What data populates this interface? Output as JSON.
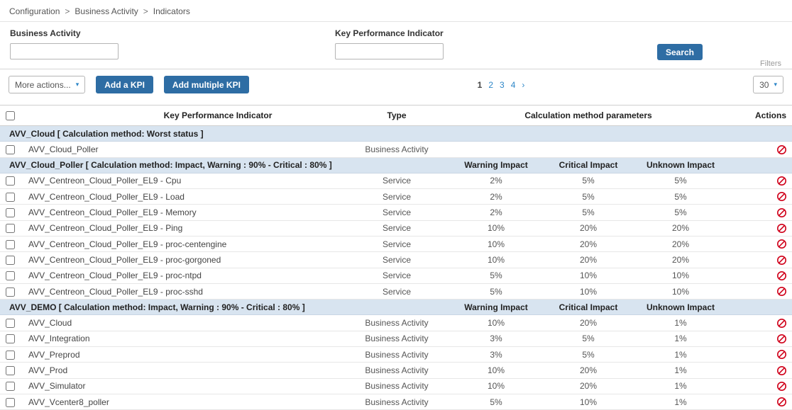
{
  "breadcrumb": {
    "separator": ">",
    "items": [
      "Configuration",
      "Business Activity",
      "Indicators"
    ]
  },
  "filters": {
    "business_activity": {
      "label": "Business Activity",
      "value": ""
    },
    "kpi": {
      "label": "Key Performance Indicator",
      "value": ""
    },
    "search_button": "Search",
    "filters_caption": "Filters"
  },
  "toolbar": {
    "more_actions": "More actions...",
    "add_kpi": "Add a KPI",
    "add_multiple_kpi": "Add multiple KPI",
    "pagination": {
      "pages": [
        "1",
        "2",
        "3",
        "4"
      ],
      "current": "1",
      "next": "›"
    },
    "page_size": "30",
    "chevron": "▾"
  },
  "table": {
    "headers": {
      "kpi": "Key Performance Indicator",
      "type": "Type",
      "calc_params": "Calculation method parameters",
      "actions": "Actions"
    },
    "groups": [
      {
        "title": "AVV_Cloud [ Calculation method: Worst status ]",
        "subheaders": null,
        "rows": [
          {
            "name": "AVV_Cloud_Poller",
            "type": "Business Activity",
            "warning": "",
            "critical": "",
            "unknown": ""
          }
        ]
      },
      {
        "title": "AVV_Cloud_Poller [ Calculation method: Impact, Warning : 90% - Critical : 80% ]",
        "subheaders": {
          "warning": "Warning Impact",
          "critical": "Critical Impact",
          "unknown": "Unknown Impact"
        },
        "rows": [
          {
            "name": "AVV_Centreon_Cloud_Poller_EL9 - Cpu",
            "type": "Service",
            "warning": "2%",
            "critical": "5%",
            "unknown": "5%"
          },
          {
            "name": "AVV_Centreon_Cloud_Poller_EL9 - Load",
            "type": "Service",
            "warning": "2%",
            "critical": "5%",
            "unknown": "5%"
          },
          {
            "name": "AVV_Centreon_Cloud_Poller_EL9 - Memory",
            "type": "Service",
            "warning": "2%",
            "critical": "5%",
            "unknown": "5%"
          },
          {
            "name": "AVV_Centreon_Cloud_Poller_EL9 - Ping",
            "type": "Service",
            "warning": "10%",
            "critical": "20%",
            "unknown": "20%"
          },
          {
            "name": "AVV_Centreon_Cloud_Poller_EL9 - proc-centengine",
            "type": "Service",
            "warning": "10%",
            "critical": "20%",
            "unknown": "20%"
          },
          {
            "name": "AVV_Centreon_Cloud_Poller_EL9 - proc-gorgoned",
            "type": "Service",
            "warning": "10%",
            "critical": "20%",
            "unknown": "20%"
          },
          {
            "name": "AVV_Centreon_Cloud_Poller_EL9 - proc-ntpd",
            "type": "Service",
            "warning": "5%",
            "critical": "10%",
            "unknown": "10%"
          },
          {
            "name": "AVV_Centreon_Cloud_Poller_EL9 - proc-sshd",
            "type": "Service",
            "warning": "5%",
            "critical": "10%",
            "unknown": "10%"
          }
        ]
      },
      {
        "title": "AVV_DEMO [ Calculation method: Impact, Warning : 90% - Critical : 80% ]",
        "subheaders": {
          "warning": "Warning Impact",
          "critical": "Critical Impact",
          "unknown": "Unknown Impact"
        },
        "rows": [
          {
            "name": "AVV_Cloud",
            "type": "Business Activity",
            "warning": "10%",
            "critical": "20%",
            "unknown": "1%"
          },
          {
            "name": "AVV_Integration",
            "type": "Business Activity",
            "warning": "3%",
            "critical": "5%",
            "unknown": "1%"
          },
          {
            "name": "AVV_Preprod",
            "type": "Business Activity",
            "warning": "3%",
            "critical": "5%",
            "unknown": "1%"
          },
          {
            "name": "AVV_Prod",
            "type": "Business Activity",
            "warning": "10%",
            "critical": "20%",
            "unknown": "1%"
          },
          {
            "name": "AVV_Simulator",
            "type": "Business Activity",
            "warning": "10%",
            "critical": "20%",
            "unknown": "1%"
          },
          {
            "name": "AVV_Vcenter8_poller",
            "type": "Business Activity",
            "warning": "5%",
            "critical": "10%",
            "unknown": "1%"
          }
        ]
      }
    ]
  },
  "icons": {
    "disable": "prohibition-circle"
  },
  "colors": {
    "primary_button": "#2e6da4",
    "group_row_bg": "#d8e4f0",
    "pagination_link": "#2e87c8",
    "action_icon": "#d0021b"
  }
}
